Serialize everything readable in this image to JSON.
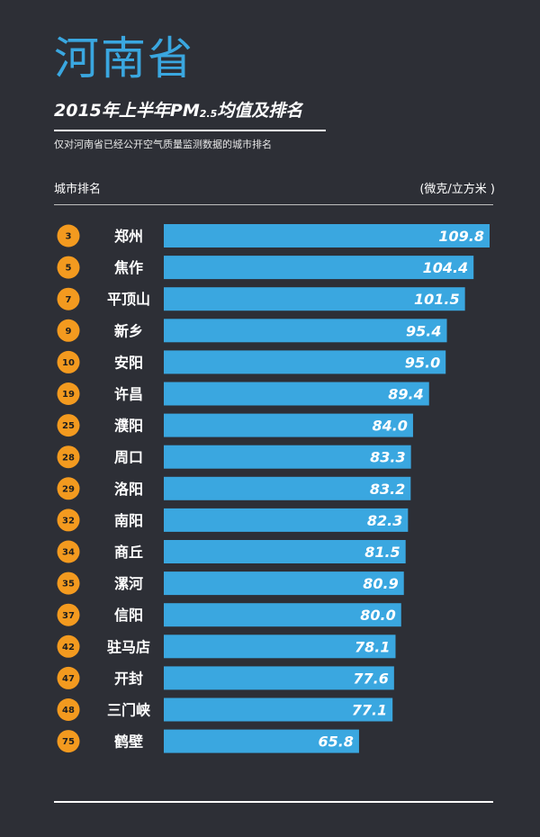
{
  "province": "河南省",
  "title": {
    "year": "2015",
    "main": "年上半年PM",
    "sub": "2.5",
    "rest": "均值及排名"
  },
  "subtitle": "仅对河南省已经公开空气质量监测数据的城市排名",
  "column_left": "城市排名",
  "column_right": "(微克/立方米 )",
  "colors": {
    "background": "#2d2f36",
    "bar": "#3aa7e0",
    "badge": "#f39a1f",
    "accent_title": "#3aa7e0"
  },
  "chart_data": {
    "type": "bar",
    "orientation": "horizontal",
    "title": "2015年上半年PM2.5均值及排名",
    "unit": "(微克/立方米 )",
    "categories": [
      "郑州",
      "焦作",
      "平顶山",
      "新乡",
      "安阳",
      "许昌",
      "濮阳",
      "周口",
      "洛阳",
      "南阳",
      "商丘",
      "漯河",
      "信阳",
      "驻马店",
      "开封",
      "三门峡",
      "鹤壁"
    ],
    "ranks": [
      "3",
      "5",
      "7",
      "9",
      "10",
      "19",
      "25",
      "28",
      "29",
      "32",
      "34",
      "35",
      "37",
      "42",
      "47",
      "48",
      "75"
    ],
    "values": [
      109.8,
      104.4,
      101.5,
      95.4,
      95.0,
      89.4,
      84.0,
      83.3,
      83.2,
      82.3,
      81.5,
      80.9,
      80.0,
      78.1,
      77.6,
      77.1,
      65.8
    ],
    "value_labels": [
      "109.8",
      "104.4",
      "101.5",
      "95.4",
      "95.0",
      "89.4",
      "84.0",
      "83.3",
      "83.2",
      "82.3",
      "81.5",
      "80.9",
      "80.0",
      "78.1",
      "77.6",
      "77.1",
      "65.8"
    ]
  }
}
